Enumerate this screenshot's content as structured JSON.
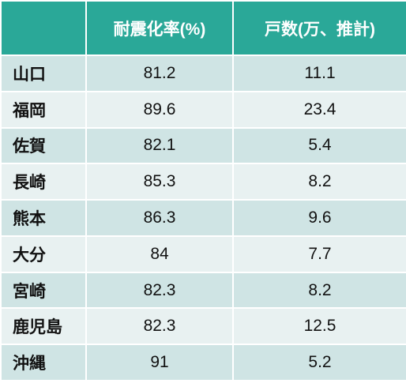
{
  "table": {
    "columns": [
      "",
      "耐震化率(%)",
      "戸数(万、推計)"
    ],
    "rows": [
      {
        "region": "山口",
        "rate": "81.2",
        "units": "11.1"
      },
      {
        "region": "福岡",
        "rate": "89.6",
        "units": "23.4"
      },
      {
        "region": "佐賀",
        "rate": "82.1",
        "units": "5.4"
      },
      {
        "region": "長崎",
        "rate": "85.3",
        "units": "8.2"
      },
      {
        "region": "熊本",
        "rate": "86.3",
        "units": "9.6"
      },
      {
        "region": "大分",
        "rate": "84",
        "units": "7.7"
      },
      {
        "region": "宮崎",
        "rate": "82.3",
        "units": "8.2"
      },
      {
        "region": "鹿児島",
        "rate": "82.3",
        "units": "12.5"
      },
      {
        "region": "沖縄",
        "rate": "91",
        "units": "5.2"
      }
    ]
  },
  "colors": {
    "header_bg": "#2aa898",
    "row_odd_bg": "#cfe4e4",
    "row_even_bg": "#e8f1f1"
  }
}
